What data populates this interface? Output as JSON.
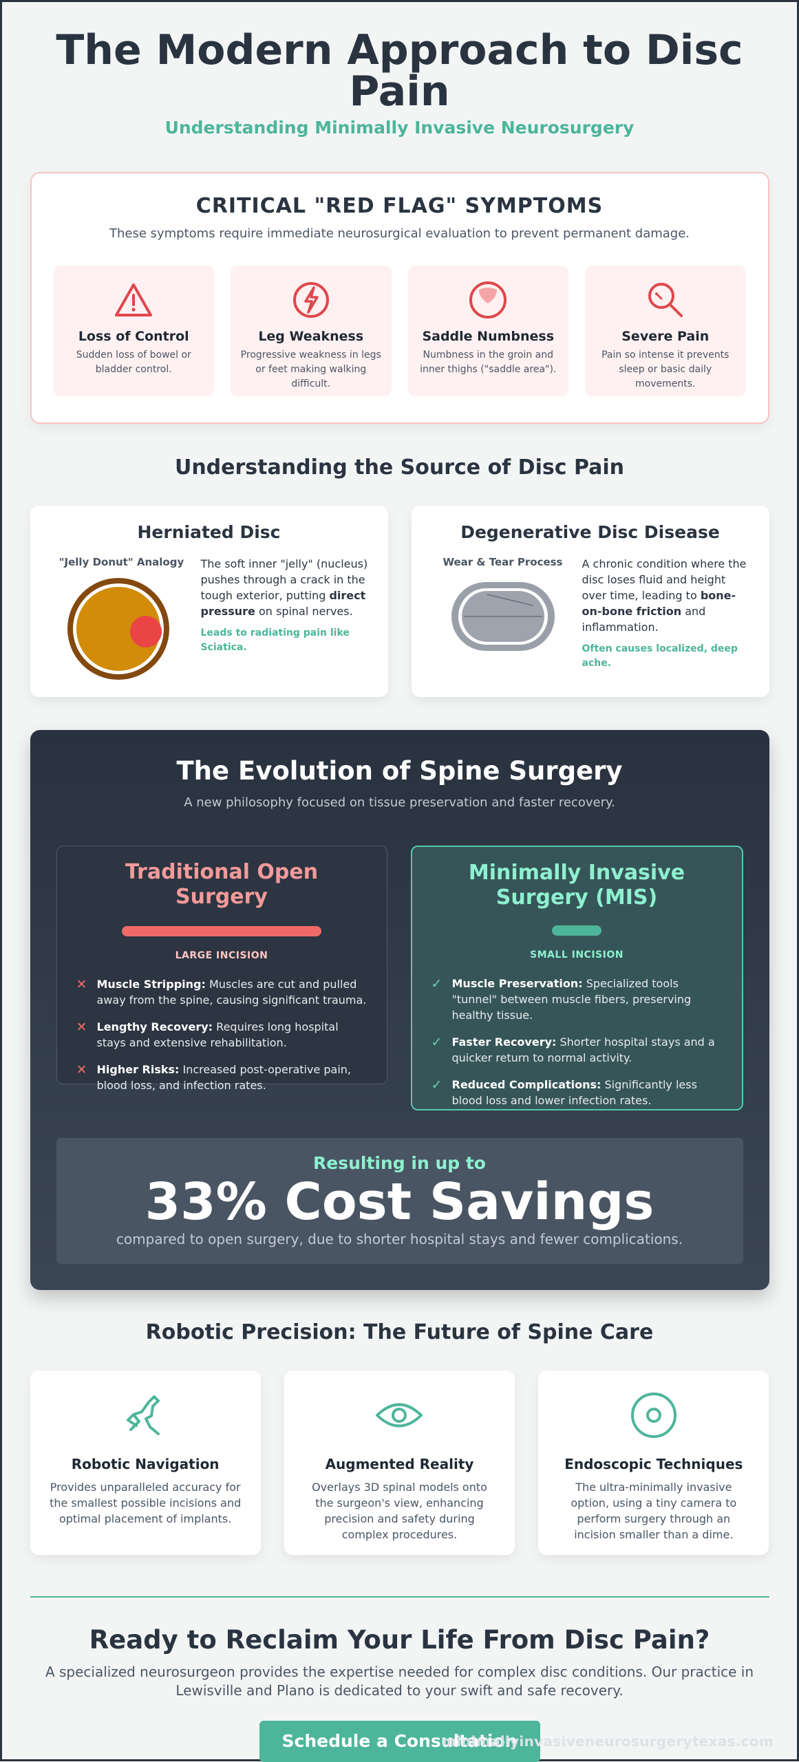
{
  "header": {
    "title": "The Modern Approach to Disc Pain",
    "subtitle": "Understanding Minimally Invasive Neurosurgery"
  },
  "red_flags": {
    "title": "CRITICAL \"RED FLAG\" SYMPTOMS",
    "subtitle": "These symptoms require immediate neurosurgical evaluation to prevent permanent damage.",
    "items": [
      {
        "icon": "warning-triangle-icon",
        "name": "Loss of Control",
        "desc": "Sudden loss of bowel or bladder control."
      },
      {
        "icon": "lightning-bolt-icon",
        "name": "Leg Weakness",
        "desc": "Progressive weakness in legs or feet making walking difficult."
      },
      {
        "icon": "saddle-region-icon",
        "name": "Saddle Numbness",
        "desc": "Numbness in the groin and inner thighs (\"saddle area\")."
      },
      {
        "icon": "magnifier-icon",
        "name": "Severe Pain",
        "desc": "Pain so intense it prevents sleep or basic daily movements."
      }
    ]
  },
  "source": {
    "title": "Understanding the Source of Disc Pain",
    "herniated": {
      "title": "Herniated Disc",
      "caption": "\"Jelly Donut\" Analogy",
      "text_a": "The soft inner \"jelly\" (nucleus) pushes through a crack in the tough exterior, putting ",
      "text_bold": "direct pressure",
      "text_b": " on spinal nerves.",
      "note": "Leads to radiating pain like Sciatica."
    },
    "degenerative": {
      "title": "Degenerative Disc Disease",
      "caption": "Wear & Tear Process",
      "text_a": "A chronic condition where the disc loses fluid and height over time, leading to ",
      "text_bold": "bone-on-bone friction",
      "text_b": " and inflammation.",
      "note": "Often causes localized, deep ache."
    }
  },
  "evolution": {
    "title": "The Evolution of Spine Surgery",
    "subtitle": "A new philosophy focused on tissue preservation and faster recovery.",
    "traditional": {
      "title": "Traditional Open Surgery",
      "incision": "LARGE INCISION",
      "items": [
        {
          "bold": "Muscle Stripping:",
          "text": " Muscles are cut and pulled away from the spine, causing significant trauma."
        },
        {
          "bold": "Lengthy Recovery:",
          "text": " Requires long hospital stays and extensive rehabilitation."
        },
        {
          "bold": "Higher Risks:",
          "text": " Increased post-operative pain, blood loss, and infection rates."
        }
      ]
    },
    "mis": {
      "title": "Minimally Invasive Surgery (MIS)",
      "incision": "SMALL INCISION",
      "items": [
        {
          "bold": "Muscle Preservation:",
          "text": " Specialized tools \"tunnel\" between muscle fibers, preserving healthy tissue."
        },
        {
          "bold": "Faster Recovery:",
          "text": " Shorter hospital stays and a quicker return to normal activity."
        },
        {
          "bold": "Reduced Complications:",
          "text": " Significantly less blood loss and lower infection rates."
        }
      ]
    },
    "savings": {
      "pre": "Resulting in up to",
      "big": "33% Cost Savings",
      "post": "compared to open surgery, due to shorter hospital stays and fewer complications."
    }
  },
  "robotic": {
    "title": "Robotic Precision: The Future of Spine Care",
    "items": [
      {
        "icon": "robotic-arm-icon",
        "name": "Robotic Navigation",
        "desc": "Provides unparalleled accuracy for the smallest possible incisions and optimal placement of implants."
      },
      {
        "icon": "eye-icon",
        "name": "Augmented Reality",
        "desc": "Overlays 3D spinal models onto the surgeon's view, enhancing precision and safety during complex procedures."
      },
      {
        "icon": "target-circle-icon",
        "name": "Endoscopic Techniques",
        "desc": "The ultra-minimally invasive option, using a tiny camera to perform surgery through an incision smaller than a dime."
      }
    ]
  },
  "cta": {
    "title": "Ready to Reclaim Your Life From Disc Pain?",
    "subtitle": "A specialized neurosurgeon provides the expertise needed for complex disc conditions. Our practice in Lewisville and Plano is dedicated to your swift and safe recovery.",
    "button": "Schedule a Consultation"
  },
  "watermark": "minimallyinvasiveneurosurgerytexas.com",
  "colors": {
    "accent": "#4db59a",
    "danger": "#e0474c",
    "dark": "#29323f"
  }
}
